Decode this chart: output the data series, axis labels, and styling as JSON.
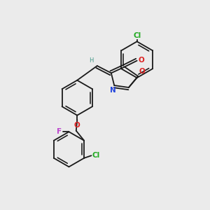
{
  "background_color": "#ebebeb",
  "bond_color": "#1a1a1a",
  "atom_colors": {
    "Cl": "#22aa22",
    "N": "#2244dd",
    "O": "#dd2222",
    "F": "#bb44cc",
    "H": "#449988",
    "C": "#1a1a1a"
  },
  "bond_lw": 1.3,
  "dbo": 0.055,
  "fs": 7.5,
  "figsize": [
    3.0,
    3.0
  ],
  "dpi": 100,
  "xlim": [
    0,
    10
  ],
  "ylim": [
    0,
    10
  ]
}
